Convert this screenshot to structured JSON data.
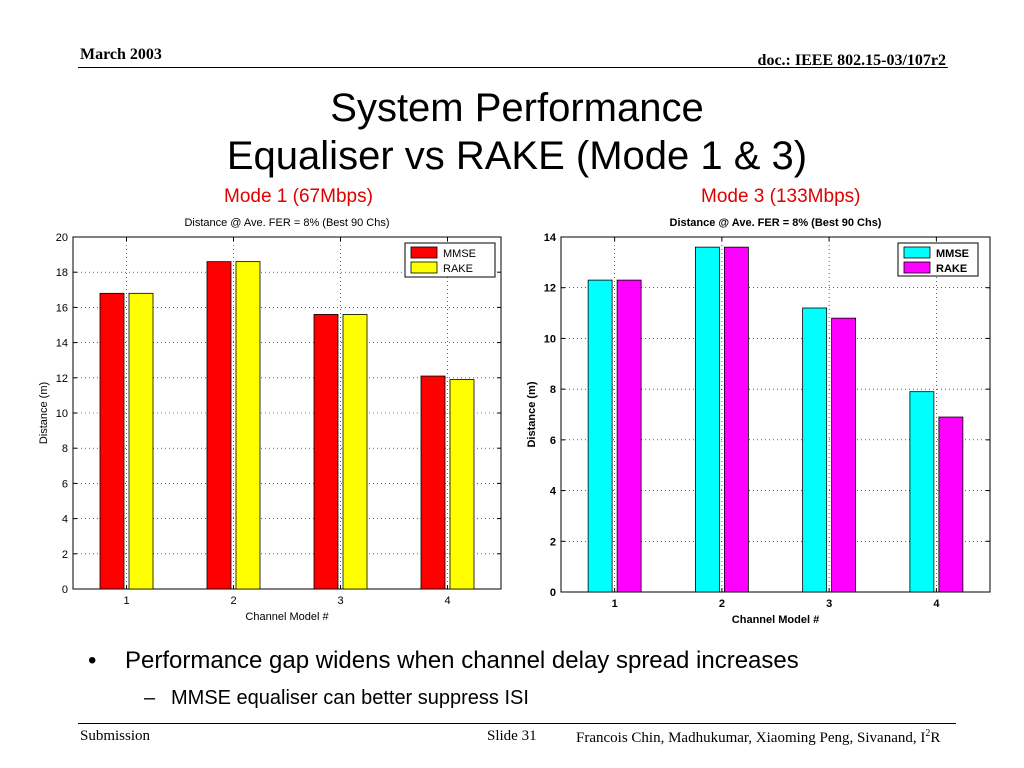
{
  "header": {
    "date": "March 2003",
    "doc": "doc.: IEEE 802.15-03/107r2"
  },
  "title": {
    "line1": "System Performance",
    "line2": "Equaliser vs RAKE (Mode 1 & 3)"
  },
  "chart_data": [
    {
      "type": "bar",
      "heading": "Mode 1 (67Mbps)",
      "title": "Distance @ Ave. FER = 8% (Best 90 Chs)",
      "xlabel": "Channel Model #",
      "ylabel": "Distance (m)",
      "categories": [
        "1",
        "2",
        "3",
        "4"
      ],
      "ylim": [
        0,
        20
      ],
      "yticks": [
        0,
        2,
        4,
        6,
        8,
        10,
        12,
        14,
        16,
        18,
        20
      ],
      "grid": true,
      "legend_position": "top-right",
      "series": [
        {
          "name": "MMSE",
          "color": "#ff0000",
          "values": [
            16.8,
            18.6,
            15.6,
            12.1
          ]
        },
        {
          "name": "RAKE",
          "color": "#ffff00",
          "values": [
            16.8,
            18.6,
            15.6,
            11.9
          ]
        }
      ]
    },
    {
      "type": "bar",
      "heading": "Mode 3 (133Mbps)",
      "title": "Distance @ Ave. FER = 8% (Best 90 Chs)",
      "xlabel": "Channel Model #",
      "ylabel": "Distance (m)",
      "categories": [
        "1",
        "2",
        "3",
        "4"
      ],
      "ylim": [
        0,
        14
      ],
      "yticks": [
        0,
        2,
        4,
        6,
        8,
        10,
        12,
        14
      ],
      "grid": true,
      "legend_position": "top-right",
      "series": [
        {
          "name": "MMSE",
          "color": "#00ffff",
          "values": [
            12.3,
            13.6,
            11.2,
            7.9
          ]
        },
        {
          "name": "RAKE",
          "color": "#ff00ff",
          "values": [
            12.3,
            13.6,
            10.8,
            6.9
          ]
        }
      ]
    }
  ],
  "bullets": {
    "main": "Performance gap widens when channel delay spread increases",
    "sub": "MMSE equaliser can better suppress ISI"
  },
  "footer": {
    "left": "Submission",
    "slide": "Slide 31",
    "authors": "Francois Chin, Madhukumar, Xiaoming Peng, Sivanand, I",
    "authors_sup": "2",
    "authors_end": "R"
  }
}
